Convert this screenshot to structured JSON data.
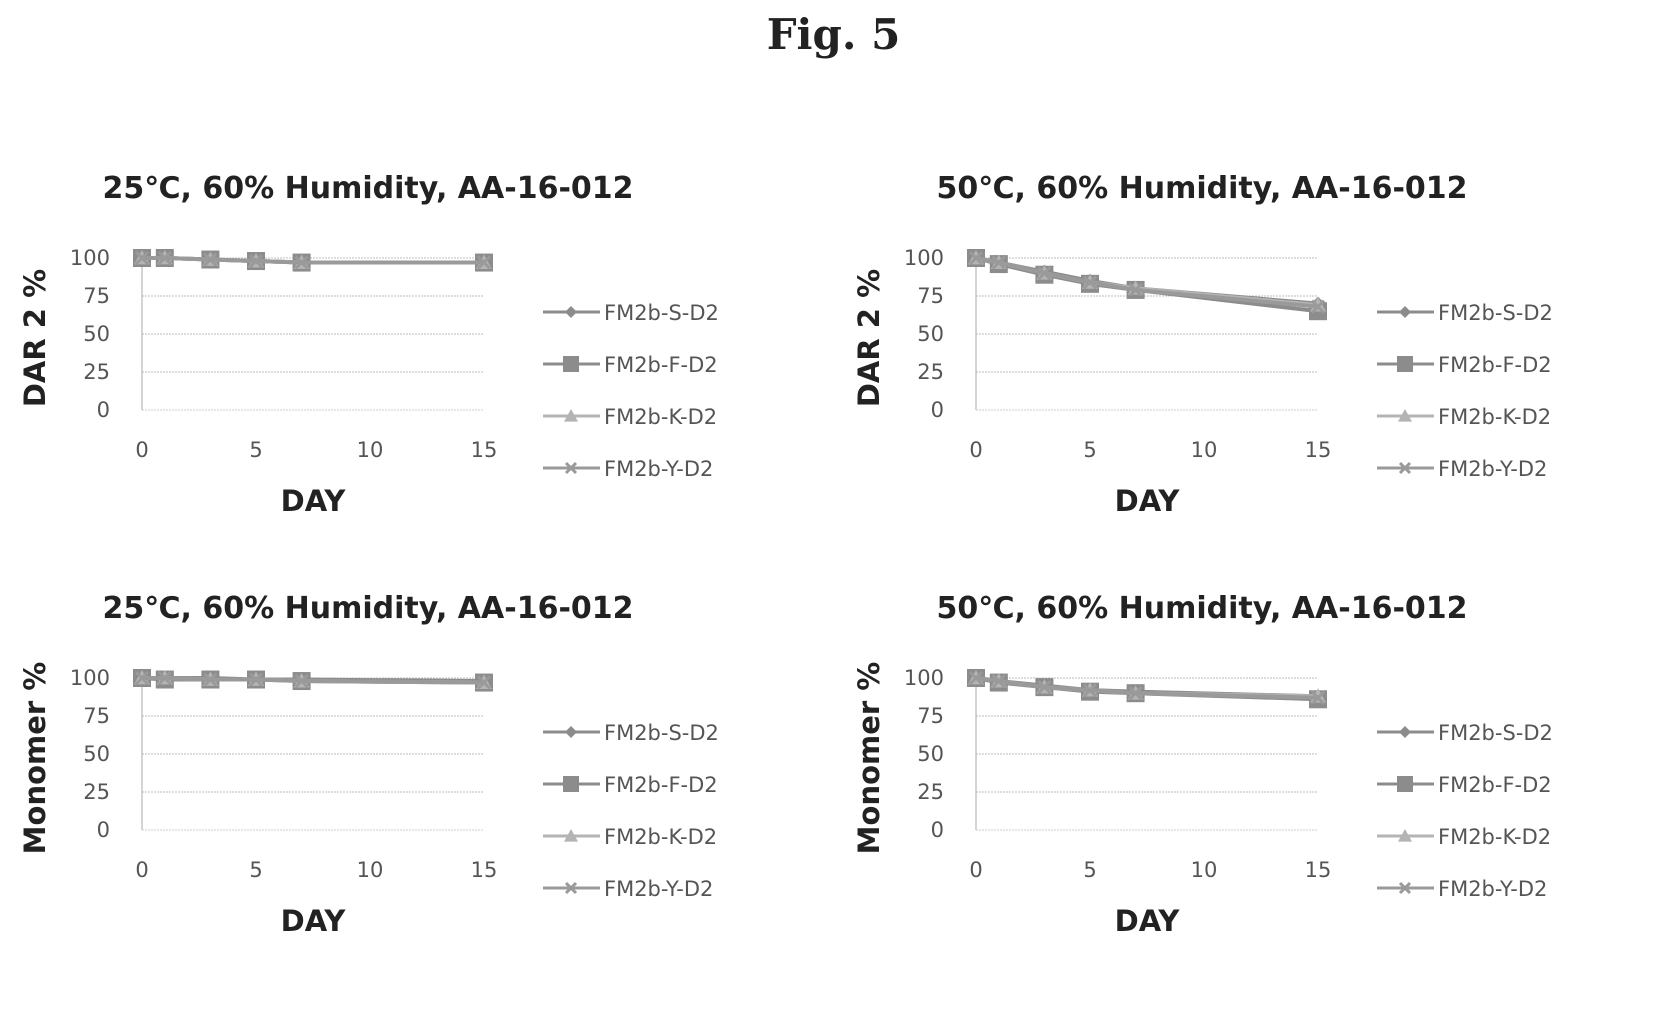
{
  "figure_title": "Fig. 5",
  "chart_data": [
    {
      "type": "line",
      "title": "25℃, 60% Humidity, AA-16-012",
      "xlabel": "DAY",
      "ylabel": "DAR 2 %",
      "xlim": [
        0,
        15
      ],
      "ylim": [
        0,
        100
      ],
      "xticks": [
        0,
        5,
        10,
        15
      ],
      "yticks": [
        0,
        25,
        50,
        75,
        100
      ],
      "grid": "horizontal",
      "legend": "right",
      "x": [
        0,
        1,
        3,
        5,
        7,
        15
      ],
      "series": [
        {
          "name": "FM2b-S-D2",
          "marker": "diamond",
          "color": "#8c8c8c",
          "values": [
            100,
            100,
            99,
            98,
            97,
            97
          ]
        },
        {
          "name": "FM2b-F-D2",
          "marker": "square",
          "color": "#8c8c8c",
          "values": [
            100,
            100,
            99,
            98,
            97,
            97
          ]
        },
        {
          "name": "FM2b-K-D2",
          "marker": "triangle",
          "color": "#b4b4b4",
          "values": [
            100,
            100,
            99,
            98,
            97,
            97
          ]
        },
        {
          "name": "FM2b-Y-D2",
          "marker": "x",
          "color": "#9a9a9a",
          "values": [
            100,
            100,
            99,
            98,
            97,
            97
          ]
        }
      ]
    },
    {
      "type": "line",
      "title": "50℃, 60% Humidity, AA-16-012",
      "xlabel": "DAY",
      "ylabel": "DAR 2 %",
      "xlim": [
        0,
        15
      ],
      "ylim": [
        0,
        100
      ],
      "xticks": [
        0,
        5,
        10,
        15
      ],
      "yticks": [
        0,
        25,
        50,
        75,
        100
      ],
      "grid": "horizontal",
      "legend": "right",
      "x": [
        0,
        1,
        3,
        5,
        7,
        15
      ],
      "series": [
        {
          "name": "FM2b-S-D2",
          "marker": "diamond",
          "color": "#8c8c8c",
          "values": [
            100,
            97,
            91,
            85,
            80,
            70
          ]
        },
        {
          "name": "FM2b-F-D2",
          "marker": "square",
          "color": "#8c8c8c",
          "values": [
            100,
            96,
            89,
            83,
            79,
            65
          ]
        },
        {
          "name": "FM2b-K-D2",
          "marker": "triangle",
          "color": "#b4b4b4",
          "values": [
            100,
            97,
            90,
            84,
            80,
            69
          ]
        },
        {
          "name": "FM2b-Y-D2",
          "marker": "x",
          "color": "#9a9a9a",
          "values": [
            100,
            97,
            90,
            84,
            79,
            68
          ]
        }
      ]
    },
    {
      "type": "line",
      "title": "25℃, 60% Humidity, AA-16-012",
      "xlabel": "DAY",
      "ylabel": "Monomer %",
      "xlim": [
        0,
        15
      ],
      "ylim": [
        0,
        100
      ],
      "xticks": [
        0,
        5,
        10,
        15
      ],
      "yticks": [
        0,
        25,
        50,
        75,
        100
      ],
      "grid": "horizontal",
      "legend": "right",
      "x": [
        0,
        1,
        3,
        5,
        7,
        15
      ],
      "series": [
        {
          "name": "FM2b-S-D2",
          "marker": "diamond",
          "color": "#8c8c8c",
          "values": [
            100,
            100,
            100,
            99,
            99,
            98
          ]
        },
        {
          "name": "FM2b-F-D2",
          "marker": "square",
          "color": "#8c8c8c",
          "values": [
            100,
            99,
            99,
            99,
            98,
            97
          ]
        },
        {
          "name": "FM2b-K-D2",
          "marker": "triangle",
          "color": "#b4b4b4",
          "values": [
            100,
            100,
            99,
            99,
            98,
            97
          ]
        },
        {
          "name": "FM2b-Y-D2",
          "marker": "x",
          "color": "#9a9a9a",
          "values": [
            100,
            100,
            99,
            99,
            98,
            97
          ]
        }
      ]
    },
    {
      "type": "line",
      "title": "50℃, 60% Humidity, AA-16-012",
      "xlabel": "DAY",
      "ylabel": "Monomer %",
      "xlim": [
        0,
        15
      ],
      "ylim": [
        0,
        100
      ],
      "xticks": [
        0,
        5,
        10,
        15
      ],
      "yticks": [
        0,
        25,
        50,
        75,
        100
      ],
      "grid": "horizontal",
      "legend": "right",
      "x": [
        0,
        1,
        3,
        5,
        7,
        15
      ],
      "series": [
        {
          "name": "FM2b-S-D2",
          "marker": "diamond",
          "color": "#8c8c8c",
          "values": [
            100,
            98,
            95,
            92,
            91,
            88
          ]
        },
        {
          "name": "FM2b-F-D2",
          "marker": "square",
          "color": "#8c8c8c",
          "values": [
            100,
            97,
            94,
            91,
            90,
            86
          ]
        },
        {
          "name": "FM2b-K-D2",
          "marker": "triangle",
          "color": "#b4b4b4",
          "values": [
            100,
            98,
            94,
            92,
            90,
            88
          ]
        },
        {
          "name": "FM2b-Y-D2",
          "marker": "x",
          "color": "#9a9a9a",
          "values": [
            100,
            98,
            94,
            92,
            90,
            87
          ]
        }
      ]
    }
  ]
}
